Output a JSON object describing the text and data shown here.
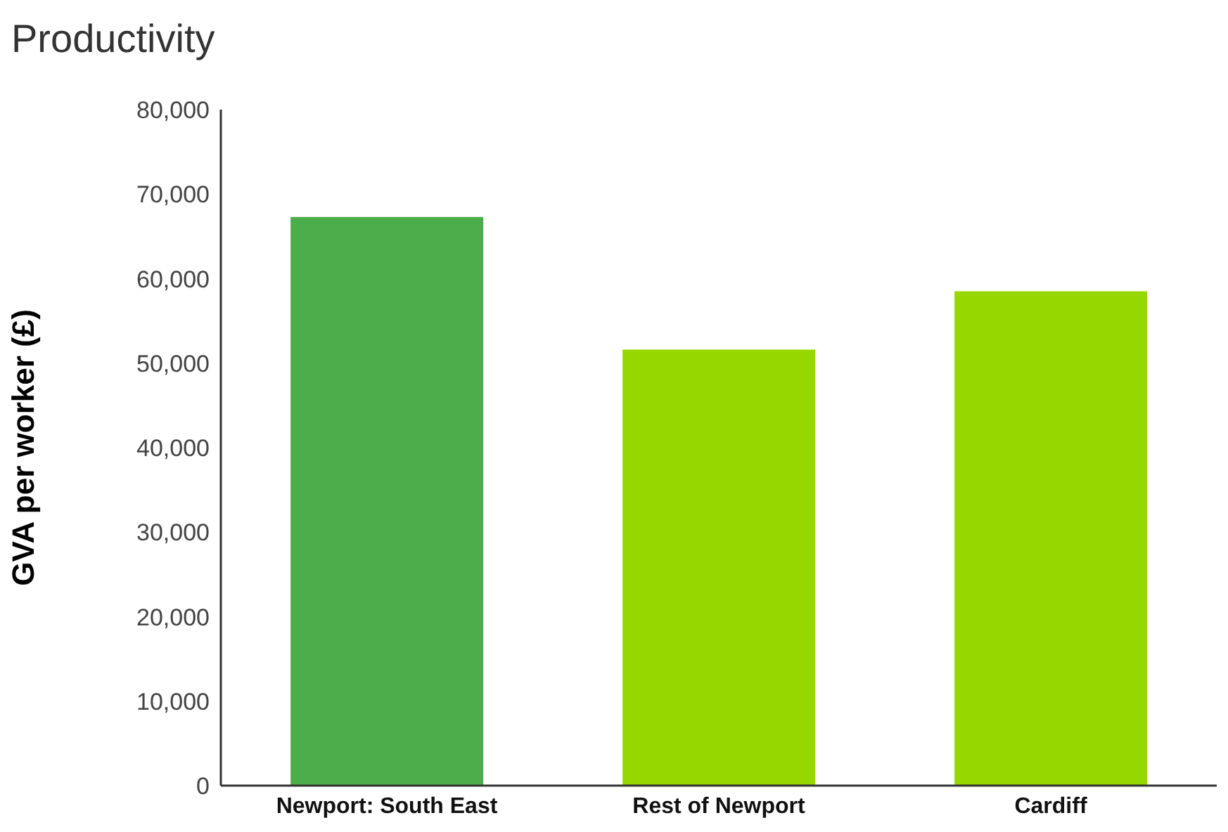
{
  "chart_data": {
    "type": "bar",
    "title": "Productivity",
    "ylabel": "GVA per worker (£)",
    "categories": [
      "Newport: South East",
      "Rest of Newport",
      "Cardiff"
    ],
    "values": [
      67300,
      51600,
      58500
    ],
    "colors": [
      "#4aad4a",
      "#97d700",
      "#97d700"
    ],
    "ylim": [
      0,
      80000
    ],
    "yticks": [
      {
        "value": 0,
        "label": "0"
      },
      {
        "value": 10000,
        "label": "10,000"
      },
      {
        "value": 20000,
        "label": "20,000"
      },
      {
        "value": 30000,
        "label": "30,000"
      },
      {
        "value": 40000,
        "label": "40,000"
      },
      {
        "value": 50000,
        "label": "50,000"
      },
      {
        "value": 60000,
        "label": "60,000"
      },
      {
        "value": 70000,
        "label": "70,000"
      },
      {
        "value": 80000,
        "label": "80,000"
      }
    ],
    "grid": false
  }
}
